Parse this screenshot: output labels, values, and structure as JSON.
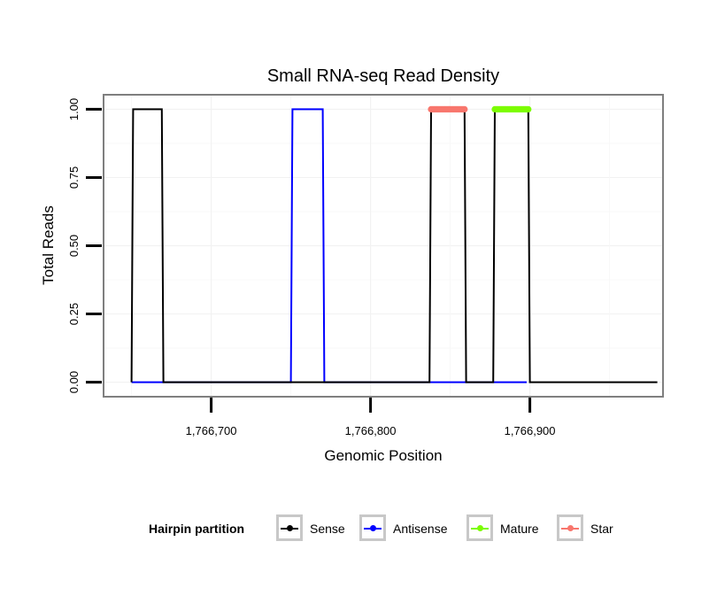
{
  "chart_data": {
    "type": "line",
    "title": "Small RNA-seq Read Density",
    "xlabel": "Genomic Position",
    "ylabel": "Total Reads",
    "xlim": [
      1766633,
      1766983
    ],
    "ylim": [
      -0.05,
      1.05
    ],
    "x_ticks": [
      1766700,
      1766800,
      1766900
    ],
    "x_tick_labels": [
      "1,766,700",
      "1,766,800",
      "1,766,900"
    ],
    "y_ticks": [
      0,
      0.25,
      0.5,
      0.75,
      1
    ],
    "y_tick_labels": [
      "0.00",
      "0.25",
      "0.50",
      "0.75",
      "1.00"
    ],
    "grid": true,
    "series": [
      {
        "name": "Antisense",
        "color": "#0000ff",
        "x": [
          1766650,
          1766670,
          1766750,
          1766751,
          1766770,
          1766771,
          1766838,
          1766858,
          1766878,
          1766898
        ],
        "y": [
          0,
          0,
          0,
          1,
          1,
          0,
          0,
          0,
          0,
          0
        ]
      },
      {
        "name": "Sense",
        "color": "#000000",
        "x": [
          1766650,
          1766651,
          1766669,
          1766670,
          1766837,
          1766838,
          1766859,
          1766860,
          1766877,
          1766878,
          1766899,
          1766900,
          1766980
        ],
        "y": [
          0,
          1,
          1,
          0,
          0,
          1,
          1,
          0,
          0,
          1,
          1,
          0,
          0
        ]
      },
      {
        "name": "Star",
        "color": "#f8766d",
        "marker": true,
        "x": [
          1766838,
          1766839,
          1766840,
          1766841,
          1766842,
          1766843,
          1766844,
          1766845,
          1766846,
          1766847,
          1766848,
          1766849,
          1766850,
          1766851,
          1766852,
          1766853,
          1766854,
          1766855,
          1766856,
          1766857,
          1766858,
          1766859
        ],
        "y": [
          1,
          1,
          1,
          1,
          1,
          1,
          1,
          1,
          1,
          1,
          1,
          1,
          1,
          1,
          1,
          1,
          1,
          1,
          1,
          1,
          1,
          1
        ]
      },
      {
        "name": "Mature",
        "color": "#7cfc00",
        "marker": true,
        "x": [
          1766878,
          1766879,
          1766880,
          1766881,
          1766882,
          1766883,
          1766884,
          1766885,
          1766886,
          1766887,
          1766888,
          1766889,
          1766890,
          1766891,
          1766892,
          1766893,
          1766894,
          1766895,
          1766896,
          1766897,
          1766898,
          1766899
        ],
        "y": [
          1,
          1,
          1,
          1,
          1,
          1,
          1,
          1,
          1,
          1,
          1,
          1,
          1,
          1,
          1,
          1,
          1,
          1,
          1,
          1,
          1,
          1
        ]
      }
    ],
    "legend": {
      "title": "Hairpin partition",
      "position": "bottom",
      "items": [
        {
          "label": "Sense",
          "color": "#000000"
        },
        {
          "label": "Antisense",
          "color": "#0000ff"
        },
        {
          "label": "Mature",
          "color": "#7cfc00"
        },
        {
          "label": "Star",
          "color": "#f8766d"
        }
      ]
    }
  }
}
